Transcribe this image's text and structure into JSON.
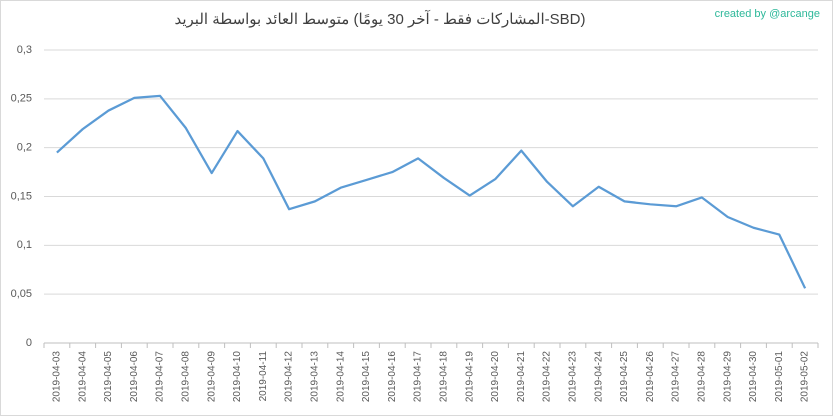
{
  "chart_data": {
    "type": "line",
    "title": "متوسط العائد بواسطة البريد (المشاركات فقط - آخر 30 يومًا-SBD)",
    "annotation": "created by @arcange",
    "categories": [
      "2019-04-03",
      "2019-04-04",
      "2019-04-05",
      "2019-04-06",
      "2019-04-07",
      "2019-04-08",
      "2019-04-09",
      "2019-04-10",
      "2019-04-11",
      "2019-04-12",
      "2019-04-13",
      "2019-04-14",
      "2019-04-15",
      "2019-04-16",
      "2019-04-17",
      "2019-04-18",
      "2019-04-19",
      "2019-04-20",
      "2019-04-21",
      "2019-04-22",
      "2019-04-23",
      "2019-04-24",
      "2019-04-25",
      "2019-04-26",
      "2019-04-27",
      "2019-04-28",
      "2019-04-29",
      "2019-04-30",
      "2019-05-01",
      "2019-05-02"
    ],
    "values": [
      0.195,
      0.219,
      0.238,
      0.251,
      0.253,
      0.22,
      0.174,
      0.217,
      0.189,
      0.137,
      0.145,
      0.159,
      0.167,
      0.175,
      0.189,
      0.169,
      0.151,
      0.168,
      0.197,
      0.165,
      0.14,
      0.16,
      0.145,
      0.142,
      0.14,
      0.149,
      0.129,
      0.118,
      0.111,
      0.056
    ],
    "color": "#5b9bd5",
    "ylim": [
      0,
      0.3
    ],
    "yticks": [
      0,
      {
        "value": 0.05,
        "label": "0,05"
      },
      {
        "value": 0.1,
        "label": "0,1"
      },
      {
        "value": 0.15,
        "label": "0,15"
      },
      {
        "value": 0.2,
        "label": "0,2"
      },
      {
        "value": 0.25,
        "label": "0,25"
      },
      {
        "value": 0.3,
        "label": "0,3"
      }
    ],
    "grid": true
  }
}
